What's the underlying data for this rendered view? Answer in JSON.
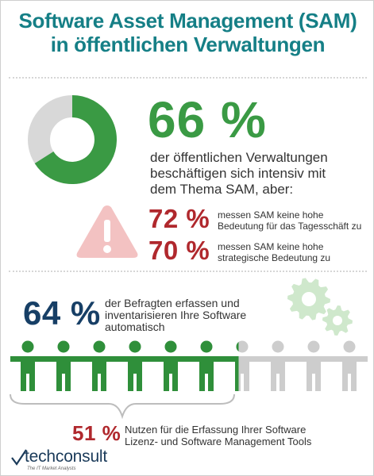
{
  "title": {
    "line1": "Software Asset Management (SAM)",
    "line2": "in öffentlichen Verwaltungen"
  },
  "stat_66": {
    "value": "66 %",
    "fraction": 0.66,
    "desc_line1": "der öffentlichen Verwaltungen",
    "desc_line2": "beschäftigen sich intensiv mit",
    "desc_line3": "dem Thema SAM, aber:"
  },
  "stat_72": {
    "value": "72 %",
    "desc_line1": "messen SAM keine hohe",
    "desc_line2": "Bedeutung für das Tagesschäft zu"
  },
  "stat_70": {
    "value": "70 %",
    "desc_line1": "messen SAM keine hohe",
    "desc_line2": "strategische Bedeutung zu"
  },
  "stat_64": {
    "value": "64 %",
    "desc_line1": "der Befragten erfassen und",
    "desc_line2": "inventarisieren Ihre Software",
    "desc_line3": "automatisch",
    "people_total": 10,
    "people_filled": 6.4
  },
  "stat_51": {
    "value": "51 %",
    "desc_line1": "Nutzen für die Erfassung Ihrer Software",
    "desc_line2": "Lizenz- und Software Management Tools"
  },
  "logo": {
    "name": "techconsult",
    "tagline": "The IT Market Analysts"
  },
  "colors": {
    "teal": "#157f86",
    "green": "#3a9a44",
    "grey": "#d8d8d8",
    "red": "#b0282d",
    "navy": "#173f66",
    "warning_pink": "#f3c2c2",
    "gear_green": "#cfe8cc"
  },
  "icons": [
    "donut-chart",
    "warning-icon",
    "gears-icon",
    "person-icon",
    "brace-icon",
    "logo-checkmark-icon"
  ]
}
